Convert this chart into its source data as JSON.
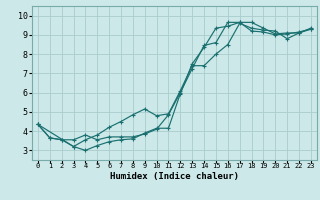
{
  "xlabel": "Humidex (Indice chaleur)",
  "ylabel": "",
  "xlim": [
    -0.5,
    23.5
  ],
  "ylim": [
    2.5,
    10.5
  ],
  "bg_color": "#cce8e8",
  "grid_color": "#aacccc",
  "line_color": "#1a7070",
  "line1": {
    "x": [
      0,
      1,
      2,
      3,
      4,
      5,
      6,
      7,
      8,
      9,
      10,
      11,
      12,
      13,
      14,
      15,
      16,
      17,
      18,
      19,
      20,
      21,
      22,
      23
    ],
    "y": [
      4.35,
      3.65,
      3.55,
      3.2,
      3.0,
      3.25,
      3.45,
      3.55,
      3.6,
      3.9,
      4.15,
      4.15,
      5.95,
      7.5,
      8.35,
      9.35,
      9.45,
      9.65,
      9.2,
      9.15,
      9.0,
      9.05,
      9.15,
      9.3
    ]
  },
  "line2": {
    "x": [
      0,
      1,
      2,
      3,
      4,
      5,
      6,
      7,
      8,
      9,
      10,
      11,
      12,
      13,
      14,
      15,
      16,
      17,
      18,
      19,
      20,
      21,
      22,
      23
    ],
    "y": [
      4.35,
      3.65,
      3.55,
      3.55,
      3.8,
      3.55,
      3.7,
      3.7,
      3.7,
      3.85,
      4.1,
      4.85,
      6.0,
      7.25,
      8.45,
      8.6,
      9.65,
      9.65,
      9.65,
      9.35,
      9.05,
      9.1,
      9.1,
      9.35
    ]
  },
  "line3": {
    "x": [
      0,
      3,
      4,
      5,
      6,
      7,
      8,
      9,
      10,
      11,
      12,
      13,
      14,
      15,
      16,
      17,
      18,
      19,
      20,
      21,
      22,
      23
    ],
    "y": [
      4.35,
      3.2,
      3.55,
      3.8,
      4.2,
      4.5,
      4.85,
      5.15,
      4.8,
      4.9,
      6.1,
      7.4,
      7.4,
      8.0,
      8.5,
      9.6,
      9.35,
      9.25,
      9.2,
      8.8,
      9.1,
      9.3
    ]
  },
  "xticks": [
    0,
    1,
    2,
    3,
    4,
    5,
    6,
    7,
    8,
    9,
    10,
    11,
    12,
    13,
    14,
    15,
    16,
    17,
    18,
    19,
    20,
    21,
    22,
    23
  ],
  "yticks": [
    3,
    4,
    5,
    6,
    7,
    8,
    9,
    10
  ]
}
